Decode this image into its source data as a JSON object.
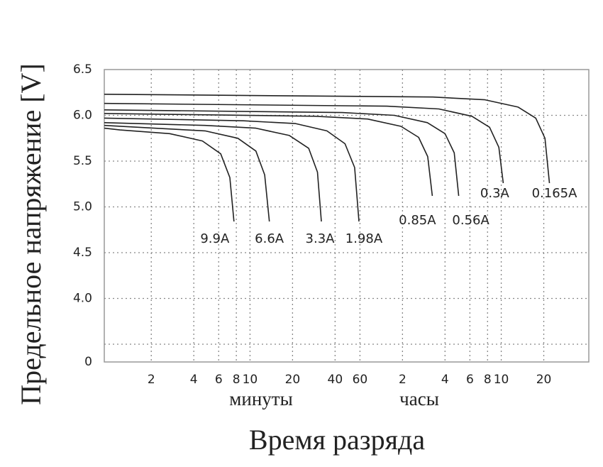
{
  "chart_data": {
    "type": "line",
    "ylabel": "Предельное напряжение [V]",
    "xlabel": "Время разряда",
    "x_groups": [
      "минуты",
      "часы"
    ],
    "xscale": "log",
    "xlim": [
      0.93,
      2500
    ],
    "xticks": [
      2,
      4,
      6,
      8,
      10,
      20,
      40,
      60,
      {
        "value": 120,
        "label": "2"
      },
      {
        "value": 240,
        "label": "4"
      },
      {
        "value": 360,
        "label": "6"
      },
      {
        "value": 480,
        "label": "8"
      },
      {
        "value": 600,
        "label": "10"
      },
      {
        "value": 1200,
        "label": "20"
      }
    ],
    "ylim": [
      0,
      6.5
    ],
    "ybreak": [
      0,
      3.5
    ],
    "yticks": [
      {
        "value": 0,
        "label": "0"
      },
      {
        "value": 4,
        "label": "4.0"
      },
      4.5,
      {
        "value": 5,
        "label": "5.0"
      },
      5.5,
      {
        "value": 6,
        "label": "6.0"
      },
      6.5
    ],
    "grid": true,
    "color": "#222222",
    "series": [
      {
        "name": "9.9A",
        "x": [
          0.93,
          1.2,
          2.7,
          4.6,
          6.2,
          7.2,
          7.7
        ],
        "values": [
          5.86,
          5.84,
          5.8,
          5.72,
          5.58,
          5.32,
          4.84
        ]
      },
      {
        "name": "6.6A",
        "x": [
          0.93,
          2.1,
          4.8,
          8.2,
          11,
          12.7,
          13.7
        ],
        "values": [
          5.89,
          5.86,
          5.83,
          5.75,
          5.61,
          5.35,
          4.84
        ]
      },
      {
        "name": "3.3A",
        "x": [
          0.93,
          4.8,
          11,
          19,
          26,
          30,
          32
        ],
        "values": [
          5.92,
          5.89,
          5.86,
          5.78,
          5.64,
          5.38,
          4.84
        ]
      },
      {
        "name": "1.98A",
        "x": [
          0.93,
          9,
          21,
          35,
          47,
          55,
          59
        ],
        "values": [
          5.97,
          5.94,
          5.91,
          5.83,
          5.69,
          5.43,
          4.84
        ]
      },
      {
        "name": "0.85A",
        "x": [
          0.93,
          29,
          68,
          117,
          156,
          181,
          195
        ],
        "values": [
          6.02,
          5.99,
          5.96,
          5.88,
          5.76,
          5.55,
          5.12
        ]
      },
      {
        "name": "0.56A",
        "x": [
          0.93,
          45,
          105,
          180,
          240,
          279,
          300
        ],
        "values": [
          6.06,
          6.03,
          6.0,
          5.92,
          5.8,
          5.59,
          5.12
        ]
      },
      {
        "name": "0.3A",
        "x": [
          0.93,
          93,
          217,
          372,
          496,
          577,
          620
        ],
        "values": [
          6.13,
          6.1,
          6.07,
          5.99,
          5.87,
          5.65,
          5.26
        ]
      },
      {
        "name": "0.165A",
        "x": [
          0.93,
          197,
          460,
          790,
          1053,
          1224,
          1316
        ],
        "values": [
          6.23,
          6.2,
          6.17,
          6.09,
          5.97,
          5.75,
          5.26
        ]
      }
    ]
  }
}
